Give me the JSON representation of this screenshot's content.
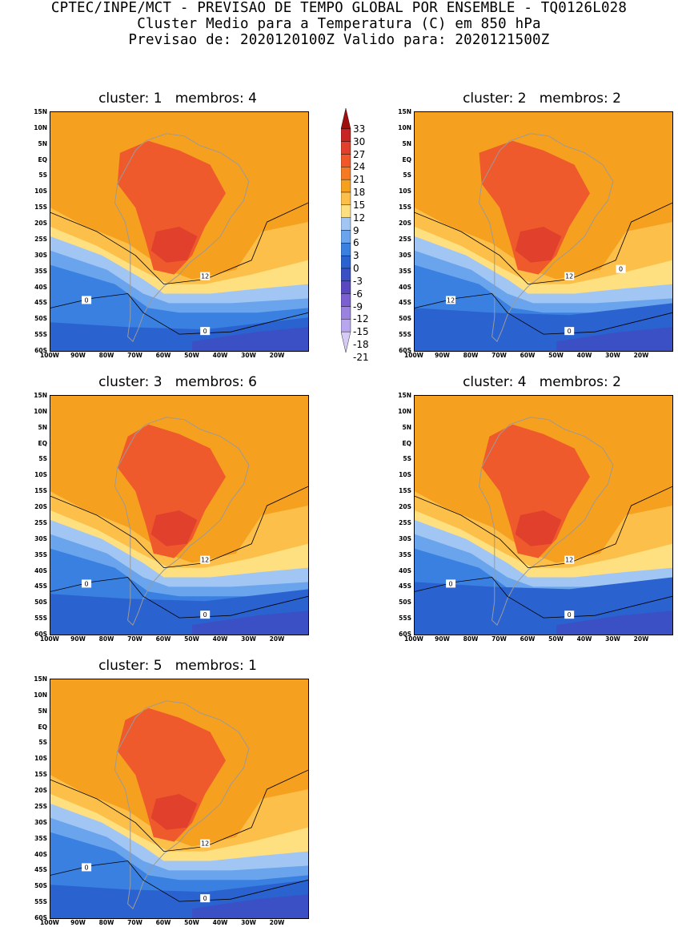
{
  "header": {
    "line1": "CPTEC/INPE/MCT - PREVISAO DE TEMPO GLOBAL POR ENSEMBLE - TQ0126L028",
    "line2": "Cluster Medio para a Temperatura (C) em 850 hPa",
    "line3": "Previsao de: 2020120100Z   Valido para: 2020121500Z"
  },
  "lat_ticks": [
    "15N",
    "10N",
    "5N",
    "EQ",
    "5S",
    "10S",
    "15S",
    "20S",
    "25S",
    "30S",
    "35S",
    "40S",
    "45S",
    "50S",
    "55S",
    "60S"
  ],
  "lon_ticks": [
    "100W",
    "90W",
    "80W",
    "70W",
    "60W",
    "50W",
    "40W",
    "30W",
    "20W"
  ],
  "colorbar": {
    "levels": [
      "33",
      "30",
      "27",
      "24",
      "21",
      "18",
      "15",
      "12",
      "9",
      "6",
      "3",
      "0",
      "-3",
      "-6",
      "-9",
      "-12",
      "-15",
      "-18",
      "-21"
    ],
    "colors": [
      "#a00e0e",
      "#c72424",
      "#e0402c",
      "#f0582a",
      "#f57a24",
      "#f6a020",
      "#fcc04a",
      "#fee081",
      "#a2c6f4",
      "#6aa4ec",
      "#3a80e0",
      "#2a62d0",
      "#3b50c4",
      "#5a48c0",
      "#7a60d0",
      "#9a82e0",
      "#b8a6ee",
      "#d6cbf6"
    ]
  },
  "panels": [
    {
      "title": "cluster: 1   membros: 4",
      "contour_labels": [
        "12",
        "0",
        "0"
      ],
      "variant": 1
    },
    {
      "title": "cluster: 2   membros: 2",
      "contour_labels": [
        "12",
        "12",
        "0",
        "0"
      ],
      "variant": 2
    },
    {
      "title": "cluster: 3   membros: 6",
      "contour_labels": [
        "12",
        "0",
        "0"
      ],
      "variant": 3
    },
    {
      "title": "cluster: 4   membros: 2",
      "contour_labels": [
        "12",
        "0",
        "0"
      ],
      "variant": 4
    },
    {
      "title": "cluster: 5   membros: 1",
      "contour_labels": [
        "12",
        "0",
        "0"
      ],
      "variant": 5
    }
  ]
}
